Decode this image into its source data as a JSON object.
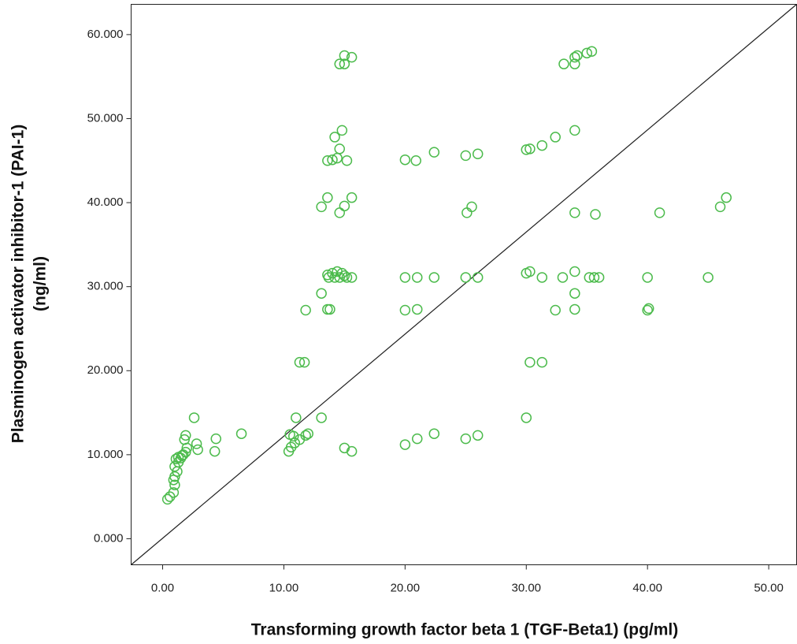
{
  "chart_data": {
    "type": "scatter",
    "xlabel": "Transforming growth factor beta 1 (TGF-Beta1) (pg/ml)",
    "ylabel": [
      "Plasminogen activator inhibitor-1 (PAI-1)",
      "(ng/ml)"
    ],
    "color": "#4cbb4c",
    "xlim": [
      -2.6,
      52.3
    ],
    "ylim": [
      -3.1,
      63.6
    ],
    "xticks": [
      {
        "value": 0,
        "label": "0.00"
      },
      {
        "value": 10,
        "label": "10.00"
      },
      {
        "value": 20,
        "label": "20.00"
      },
      {
        "value": 30,
        "label": "30.00"
      },
      {
        "value": 40,
        "label": "40.00"
      },
      {
        "value": 50,
        "label": "50.00"
      }
    ],
    "yticks": [
      {
        "value": 0,
        "label": "0.000"
      },
      {
        "value": 10,
        "label": "10.000"
      },
      {
        "value": 20,
        "label": "20.000"
      },
      {
        "value": 30,
        "label": "30.000"
      },
      {
        "value": 40,
        "label": "40.000"
      },
      {
        "value": 50,
        "label": "50.000"
      },
      {
        "value": 60,
        "label": "60.000"
      }
    ],
    "grid": false,
    "x": [
      14.6,
      15.0,
      15.0,
      15.6,
      33.1,
      34.0,
      34.0,
      34.2,
      35.0,
      35.4,
      14.8,
      34.0,
      14.2,
      32.4,
      31.3,
      14.6,
      30.0,
      30.3,
      22.4,
      26.0,
      25.0,
      13.6,
      14.0,
      14.4,
      15.2,
      20.0,
      20.9,
      13.6,
      15.6,
      46.5,
      13.1,
      15.0,
      14.6,
      25.5,
      25.1,
      34.0,
      35.7,
      41.0,
      46.0,
      13.6,
      14.0,
      14.4,
      14.8,
      15.0,
      13.7,
      14.2,
      14.6,
      15.2,
      15.6,
      20.0,
      21.0,
      22.4,
      25.0,
      26.0,
      30.0,
      30.3,
      31.3,
      33.0,
      34.0,
      35.2,
      35.6,
      36.0,
      40.0,
      45.0,
      13.1,
      34.0,
      11.8,
      13.6,
      13.8,
      20.0,
      21.0,
      32.4,
      34.0,
      40.0,
      40.1,
      11.3,
      11.7,
      30.3,
      31.3,
      2.6,
      11.0,
      13.1,
      30.0,
      1.9,
      1.8,
      2.8,
      4.4,
      6.5,
      10.5,
      10.8,
      11.3,
      12.0,
      11.8,
      22.4,
      26.0,
      25.0,
      21.0,
      20.0,
      2.9,
      4.3,
      10.4,
      10.6,
      10.9,
      15.0,
      15.6,
      0.4,
      0.6,
      0.9,
      1.0,
      0.9,
      1.0,
      1.2,
      1.0,
      1.3,
      1.1,
      1.3,
      1.5,
      1.7,
      1.9,
      2.0,
      1.6
    ],
    "y": [
      56.5,
      56.5,
      57.5,
      57.3,
      56.5,
      56.5,
      57.3,
      57.5,
      57.8,
      58.0,
      48.6,
      48.6,
      47.8,
      47.8,
      46.8,
      46.4,
      46.3,
      46.4,
      46.0,
      45.8,
      45.6,
      45.0,
      45.1,
      45.3,
      45.0,
      45.1,
      45.0,
      40.6,
      40.6,
      40.6,
      39.5,
      39.6,
      38.8,
      39.5,
      38.8,
      38.8,
      38.6,
      38.8,
      39.5,
      31.4,
      31.6,
      31.8,
      31.6,
      31.3,
      31.1,
      31.1,
      31.1,
      31.1,
      31.1,
      31.1,
      31.1,
      31.1,
      31.1,
      31.1,
      31.6,
      31.8,
      31.1,
      31.1,
      31.8,
      31.1,
      31.1,
      31.1,
      31.1,
      31.1,
      29.2,
      29.2,
      27.2,
      27.3,
      27.3,
      27.2,
      27.3,
      27.2,
      27.3,
      27.2,
      27.4,
      21.0,
      21.0,
      21.0,
      21.0,
      14.4,
      14.4,
      14.4,
      14.4,
      12.3,
      11.8,
      11.3,
      11.9,
      12.5,
      12.4,
      12.2,
      11.8,
      12.5,
      12.3,
      12.5,
      12.3,
      11.9,
      11.9,
      11.2,
      10.6,
      10.4,
      10.4,
      10.9,
      11.4,
      10.8,
      10.4,
      4.7,
      5.0,
      5.5,
      6.4,
      7.0,
      7.4,
      8.0,
      8.6,
      9.1,
      9.5,
      9.7,
      9.6,
      10.0,
      10.3,
      10.8,
      9.9
    ]
  }
}
